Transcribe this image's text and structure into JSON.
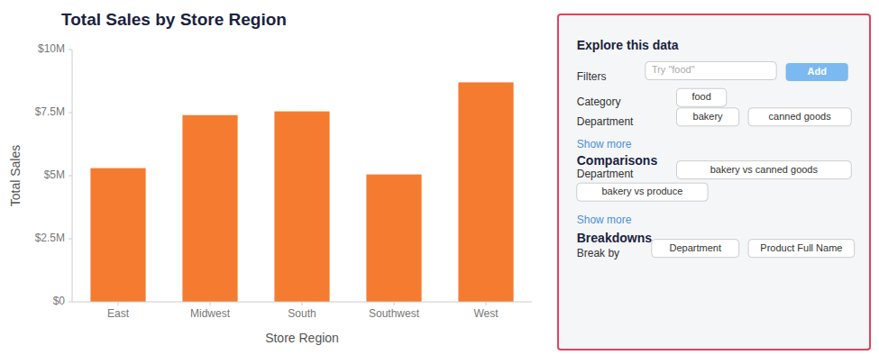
{
  "chart_data": {
    "type": "bar",
    "title": "Total Sales by Store Region",
    "xlabel": "Store Region",
    "ylabel": "Total Sales",
    "categories": [
      "East",
      "Midwest",
      "South",
      "Southwest",
      "West"
    ],
    "values": [
      5300000,
      7400000,
      7550000,
      5050000,
      8700000
    ],
    "color": "#F47B30",
    "ylim": [
      0,
      10000000
    ],
    "yticks": [
      {
        "value": 0,
        "label": "$0"
      },
      {
        "value": 2500000,
        "label": "$2.5M"
      },
      {
        "value": 5000000,
        "label": "$5M"
      },
      {
        "value": 7500000,
        "label": "$7.5M"
      },
      {
        "value": 10000000,
        "label": "$10M"
      }
    ],
    "grid": false,
    "annotations": [
      "Explore this data",
      "Filters",
      "Try \"food\"",
      "Add",
      "Category",
      "food",
      "Department",
      "bakery",
      "canned goods",
      "Show more",
      "Comparisons",
      "Department",
      "bakery vs canned goods",
      "bakery vs produce",
      "Show more",
      "Breakdowns",
      "Break by",
      "Department",
      "Product Full Name"
    ]
  }
}
